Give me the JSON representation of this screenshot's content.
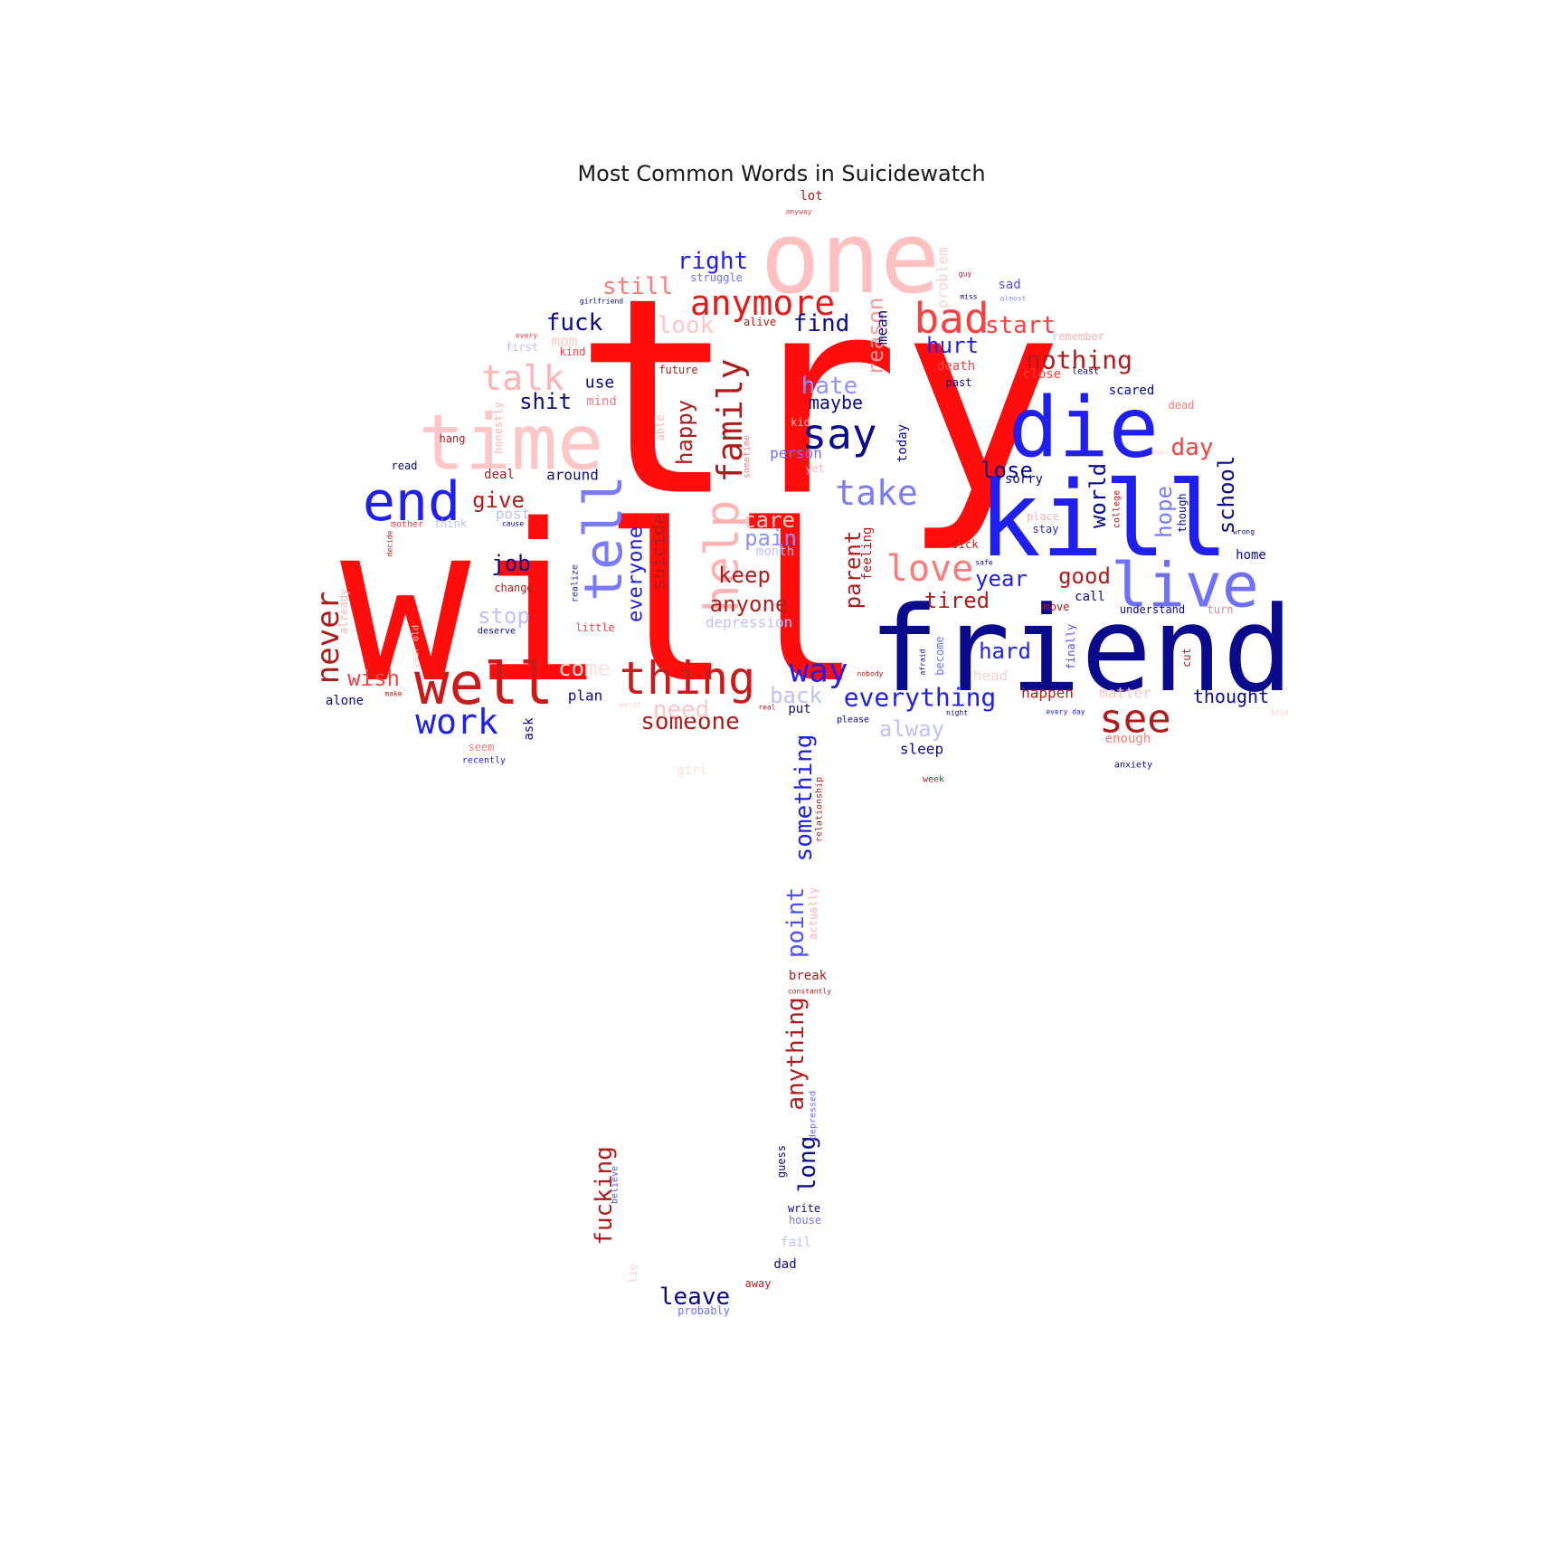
{
  "chart_data": {
    "type": "wordcloud",
    "title": "Most Common Words in Suicidewatch",
    "shape": "umbrella",
    "palette": {
      "bright_red": "#ff0d0d",
      "dark_red": "#b01c1c",
      "light_red": "#ffb3b3",
      "bright_blue": "#1f1fef",
      "navy": "#0a0a8c",
      "light_blue": "#9090ff"
    },
    "words": [
      {
        "text": "try",
        "color": "#ff0d0d",
        "rotate": false
      },
      {
        "text": "will",
        "color": "#ff0d0d",
        "rotate": false
      },
      {
        "text": "friend",
        "color": "#0a0a8c",
        "rotate": false
      },
      {
        "text": "kill",
        "color": "#1f1fef",
        "rotate": false
      },
      {
        "text": "one",
        "color": "#ffc0c0",
        "rotate": false
      },
      {
        "text": "die",
        "color": "#1f1fef",
        "rotate": false
      },
      {
        "text": "time",
        "color": "#ffc6c6",
        "rotate": false
      },
      {
        "text": "live",
        "color": "#7070ff",
        "rotate": false
      },
      {
        "text": "well",
        "color": "#cc1a1a",
        "rotate": false
      },
      {
        "text": "end",
        "color": "#1f1fef",
        "rotate": false
      },
      {
        "text": "tell",
        "color": "#7a7aff",
        "rotate": true
      },
      {
        "text": "help",
        "color": "#ffb3b3",
        "rotate": true
      },
      {
        "text": "thing",
        "color": "#cc1a1a",
        "rotate": false
      },
      {
        "text": "say",
        "color": "#0a0a8c",
        "rotate": false
      },
      {
        "text": "see",
        "color": "#b01c1c",
        "rotate": false
      },
      {
        "text": "bad",
        "color": "#ff4040",
        "rotate": false
      },
      {
        "text": "anymore",
        "color": "#e21a1a",
        "rotate": false
      },
      {
        "text": "family",
        "color": "#b01c1c",
        "rotate": true
      },
      {
        "text": "love",
        "color": "#ff7a7a",
        "rotate": false
      },
      {
        "text": "take",
        "color": "#7a7aff",
        "rotate": false
      },
      {
        "text": "way",
        "color": "#1f1fef",
        "rotate": false
      },
      {
        "text": "work",
        "color": "#1f1fef",
        "rotate": false
      },
      {
        "text": "talk",
        "color": "#ffb3b3",
        "rotate": false
      },
      {
        "text": "never",
        "color": "#b01c1c",
        "rotate": true
      },
      {
        "text": "someone",
        "color": "#b01c1c",
        "rotate": false
      },
      {
        "text": "nothing",
        "color": "#b01c1c",
        "rotate": false
      },
      {
        "text": "everything",
        "color": "#1f1fef",
        "rotate": false
      },
      {
        "text": "something",
        "color": "#1f1fef",
        "rotate": true
      },
      {
        "text": "anything",
        "color": "#b01c1c",
        "rotate": true
      },
      {
        "text": "point",
        "color": "#5050ff",
        "rotate": true
      },
      {
        "text": "long",
        "color": "#0a0a8c",
        "rotate": true
      },
      {
        "text": "fucking",
        "color": "#b01c1c",
        "rotate": true
      },
      {
        "text": "leave",
        "color": "#0a0a8c",
        "rotate": false
      },
      {
        "text": "need",
        "color": "#ffc6c6",
        "rotate": false
      },
      {
        "text": "right",
        "color": "#1f1fef",
        "rotate": false
      },
      {
        "text": "still",
        "color": "#ff7a7a",
        "rotate": false
      },
      {
        "text": "look",
        "color": "#ffc6c6",
        "rotate": false
      },
      {
        "text": "fuck",
        "color": "#0a0a8c",
        "rotate": false
      },
      {
        "text": "find",
        "color": "#0a0a8c",
        "rotate": false
      },
      {
        "text": "start",
        "color": "#ff4040",
        "rotate": false
      },
      {
        "text": "hurt",
        "color": "#1f1fef",
        "rotate": false
      },
      {
        "text": "reason",
        "color": "#ff9a9a",
        "rotate": true
      },
      {
        "text": "mean",
        "color": "#0a0a8c",
        "rotate": true
      },
      {
        "text": "problem",
        "color": "#ffd0d0",
        "rotate": true
      },
      {
        "text": "hate",
        "color": "#9090ff",
        "rotate": false
      },
      {
        "text": "maybe",
        "color": "#0a0a8c",
        "rotate": false
      },
      {
        "text": "shit",
        "color": "#0a0a8c",
        "rotate": false
      },
      {
        "text": "use",
        "color": "#0a0a8c",
        "rotate": false
      },
      {
        "text": "happy",
        "color": "#b01c1c",
        "rotate": true
      },
      {
        "text": "give",
        "color": "#b01c1c",
        "rotate": false
      },
      {
        "text": "day",
        "color": "#ff4040",
        "rotate": false
      },
      {
        "text": "lose",
        "color": "#0a0a8c",
        "rotate": false
      },
      {
        "text": "school",
        "color": "#0a0a8c",
        "rotate": true
      },
      {
        "text": "hope",
        "color": "#7a7aff",
        "rotate": true
      },
      {
        "text": "world",
        "color": "#0a0a8c",
        "rotate": true
      },
      {
        "text": "care",
        "color": "#ffc6c6",
        "rotate": false
      },
      {
        "text": "pain",
        "color": "#9090ff",
        "rotate": false
      },
      {
        "text": "keep",
        "color": "#b01c1c",
        "rotate": false
      },
      {
        "text": "anyone",
        "color": "#b01c1c",
        "rotate": false
      },
      {
        "text": "parent",
        "color": "#b01c1c",
        "rotate": true
      },
      {
        "text": "everyone",
        "color": "#1f1fef",
        "rotate": true
      },
      {
        "text": "suicide",
        "color": "#b01c1c",
        "rotate": true
      },
      {
        "text": "job",
        "color": "#0a0a8c",
        "rotate": false
      },
      {
        "text": "stop",
        "color": "#c0c0ff",
        "rotate": false
      },
      {
        "text": "wish",
        "color": "#ff4040",
        "rotate": false
      },
      {
        "text": "year",
        "color": "#1f1fef",
        "rotate": false
      },
      {
        "text": "tired",
        "color": "#b01c1c",
        "rotate": false
      },
      {
        "text": "good",
        "color": "#b01c1c",
        "rotate": false
      },
      {
        "text": "hard",
        "color": "#1f1fef",
        "rotate": false
      },
      {
        "text": "thought",
        "color": "#0a0a8c",
        "rotate": false
      },
      {
        "text": "back",
        "color": "#c0c0ff",
        "rotate": false
      },
      {
        "text": "alway",
        "color": "#c0c0ff",
        "rotate": false
      },
      {
        "text": "sleep",
        "color": "#0a0a8c",
        "rotate": false
      },
      {
        "text": "happen",
        "color": "#b01c1c",
        "rotate": false
      },
      {
        "text": "depression",
        "color": "#c0c0ff",
        "rotate": false
      },
      {
        "text": "come",
        "color": "#ffe0e0",
        "rotate": false
      },
      {
        "text": "plan",
        "color": "#0a0a8c",
        "rotate": false
      },
      {
        "text": "alone",
        "color": "#0a0a8c",
        "rotate": false
      },
      {
        "text": "around",
        "color": "#0a0a8c",
        "rotate": false
      },
      {
        "text": "deal",
        "color": "#b01c1c",
        "rotate": false
      },
      {
        "text": "person",
        "color": "#7070ff",
        "rotate": false
      },
      {
        "text": "today",
        "color": "#0a0a8c",
        "rotate": true
      },
      {
        "text": "month",
        "color": "#c0c0ff",
        "rotate": false
      },
      {
        "text": "feeling",
        "color": "#b01c1c",
        "rotate": true
      },
      {
        "text": "break",
        "color": "#b01c1c",
        "rotate": false
      },
      {
        "text": "guess",
        "color": "#0a0a8c",
        "rotate": true
      },
      {
        "text": "write",
        "color": "#0a0a8c",
        "rotate": false
      },
      {
        "text": "house",
        "color": "#7070ff",
        "rotate": false
      },
      {
        "text": "fail",
        "color": "#c0c0ff",
        "rotate": false
      },
      {
        "text": "dad",
        "color": "#0a0a8c",
        "rotate": false
      },
      {
        "text": "away",
        "color": "#b01c1c",
        "rotate": false
      },
      {
        "text": "probably",
        "color": "#7070ff",
        "rotate": false
      },
      {
        "text": "lot",
        "color": "#b01c1c",
        "rotate": false
      },
      {
        "text": "anyway",
        "color": "#ff4040",
        "rotate": false
      },
      {
        "text": "sad",
        "color": "#5050ff",
        "rotate": false
      },
      {
        "text": "struggle",
        "color": "#7070ff",
        "rotate": false
      },
      {
        "text": "alive",
        "color": "#b01c1c",
        "rotate": false
      },
      {
        "text": "death",
        "color": "#ff4040",
        "rotate": false
      },
      {
        "text": "close",
        "color": "#ff4040",
        "rotate": false
      },
      {
        "text": "scared",
        "color": "#0a0a8c",
        "rotate": false
      },
      {
        "text": "past",
        "color": "#0a0a8c",
        "rotate": false
      },
      {
        "text": "mind",
        "color": "#ff7a7a",
        "rotate": false
      },
      {
        "text": "mom",
        "color": "#ffc6c6",
        "rotate": false
      },
      {
        "text": "kind",
        "color": "#ff4040",
        "rotate": false
      },
      {
        "text": "future",
        "color": "#b01c1c",
        "rotate": false
      },
      {
        "text": "honestly",
        "color": "#ffb3b3",
        "rotate": true
      },
      {
        "text": "read",
        "color": "#0a0a8c",
        "rotate": false
      },
      {
        "text": "hang",
        "color": "#b01c1c",
        "rotate": false
      },
      {
        "text": "post",
        "color": "#c0c0ff",
        "rotate": false
      },
      {
        "text": "mother",
        "color": "#ff4040",
        "rotate": false
      },
      {
        "text": "think",
        "color": "#c0c0ff",
        "rotate": false
      },
      {
        "text": "change",
        "color": "#b01c1c",
        "rotate": false
      },
      {
        "text": "little",
        "color": "#ff4040",
        "rotate": false
      },
      {
        "text": "deserve",
        "color": "#0a0a8c",
        "rotate": false
      },
      {
        "text": "already",
        "color": "#ffb3b3",
        "rotate": true
      },
      {
        "text": "ask",
        "color": "#0a0a8c",
        "rotate": true
      },
      {
        "text": "seem",
        "color": "#ff7a7a",
        "rotate": false
      },
      {
        "text": "recently",
        "color": "#1f1fef",
        "rotate": false
      },
      {
        "text": "put",
        "color": "#0a0a8c",
        "rotate": false
      },
      {
        "text": "please",
        "color": "#0a0a8c",
        "rotate": false
      },
      {
        "text": "week",
        "color": "#b01c1c",
        "rotate": false
      },
      {
        "text": "call",
        "color": "#0a0a8c",
        "rotate": false
      },
      {
        "text": "move",
        "color": "#b01c1c",
        "rotate": false
      },
      {
        "text": "understand",
        "color": "#0a0a8c",
        "rotate": false
      },
      {
        "text": "turn",
        "color": "#ff7a7a",
        "rotate": false
      },
      {
        "text": "matter",
        "color": "#ffc6c6",
        "rotate": false
      },
      {
        "text": "enough",
        "color": "#ff7a7a",
        "rotate": false
      },
      {
        "text": "anxiety",
        "color": "#0a0a8c",
        "rotate": false
      },
      {
        "text": "every day",
        "color": "#1f1fef",
        "rotate": false
      },
      {
        "text": "finally",
        "color": "#5050ff",
        "rotate": true
      },
      {
        "text": "cut",
        "color": "#b01c1c",
        "rotate": true
      },
      {
        "text": "home",
        "color": "#0a0a8c",
        "rotate": false
      },
      {
        "text": "though",
        "color": "#0a0a8c",
        "rotate": true
      },
      {
        "text": "college",
        "color": "#b01c1c",
        "rotate": true
      },
      {
        "text": "place",
        "color": "#ffb3b3",
        "rotate": false
      },
      {
        "text": "stay",
        "color": "#1f1fef",
        "rotate": false
      },
      {
        "text": "sick",
        "color": "#b01c1c",
        "rotate": false
      },
      {
        "text": "sorry",
        "color": "#0a0a8c",
        "rotate": false
      },
      {
        "text": "dead",
        "color": "#ff7a7a",
        "rotate": false
      },
      {
        "text": "remember",
        "color": "#ffb3b3",
        "rotate": false
      },
      {
        "text": "least",
        "color": "#0a0a8c",
        "rotate": false
      },
      {
        "text": "girlfriend",
        "color": "#0a0a8c",
        "rotate": false
      },
      {
        "text": "guy",
        "color": "#b01c1c",
        "rotate": false
      },
      {
        "text": "miss",
        "color": "#0a0a8c",
        "rotate": false
      },
      {
        "text": "almost",
        "color": "#9090ff",
        "rotate": false
      },
      {
        "text": "first",
        "color": "#c0c0ff",
        "rotate": false
      },
      {
        "text": "every",
        "color": "#ff4040",
        "rotate": false
      },
      {
        "text": "head",
        "color": "#ffd0d0",
        "rotate": false
      },
      {
        "text": "become",
        "color": "#7070ff",
        "rotate": true
      },
      {
        "text": "afraid",
        "color": "#0a0a8c",
        "rotate": true
      },
      {
        "text": "nobody",
        "color": "#b01c1c",
        "rotate": false
      },
      {
        "text": "night",
        "color": "#0a0a8c",
        "rotate": false
      },
      {
        "text": "real",
        "color": "#b01c1c",
        "rotate": false
      },
      {
        "text": "able",
        "color": "#ffb3b3",
        "rotate": true
      },
      {
        "text": "kid",
        "color": "#ffb3b3",
        "rotate": false
      },
      {
        "text": "yet",
        "color": "#ffb3b3",
        "rotate": false
      },
      {
        "text": "sometime",
        "color": "#ff7a7a",
        "rotate": true
      },
      {
        "text": "relationship",
        "color": "#b01c1c",
        "rotate": true
      },
      {
        "text": "actually",
        "color": "#ffb3b3",
        "rotate": true
      },
      {
        "text": "depressed",
        "color": "#7070ff",
        "rotate": true
      },
      {
        "text": "constantly",
        "color": "#b01c1c",
        "rotate": false
      },
      {
        "text": "believe",
        "color": "#5050ff",
        "rotate": true
      },
      {
        "text": "girl",
        "color": "#ffe0e0",
        "rotate": false
      },
      {
        "text": "year old",
        "color": "#ffd0d0",
        "rotate": true
      },
      {
        "text": "make",
        "color": "#b01c1c",
        "rotate": false
      },
      {
        "text": "realize",
        "color": "#1f1fef",
        "rotate": true
      },
      {
        "text": "cause",
        "color": "#0a0a8c",
        "rotate": false
      },
      {
        "text": "decide",
        "color": "#b01c1c",
        "rotate": true
      },
      {
        "text": "lie",
        "color": "#ffd0d0",
        "rotate": true
      },
      {
        "text": "safe",
        "color": "#0a0a8c",
        "rotate": false
      },
      {
        "text": "wrong",
        "color": "#0a0a8c",
        "rotate": false
      },
      {
        "text": "hear",
        "color": "#ffd0d0",
        "rotate": false
      },
      {
        "text": "hold",
        "color": "#ffd0d0",
        "rotate": false
      },
      {
        "text": "exist",
        "color": "#ffd0d0",
        "rotate": false
      }
    ]
  }
}
